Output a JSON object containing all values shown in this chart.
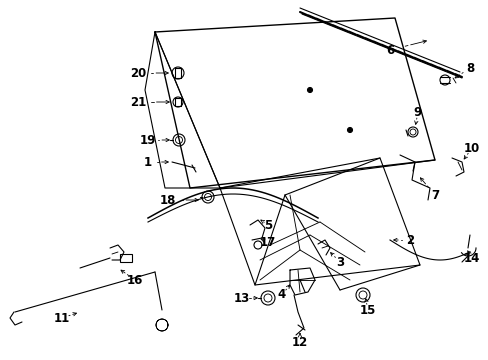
{
  "background_color": "#ffffff",
  "line_color": "#000000",
  "text_color": "#000000",
  "fig_width": 4.89,
  "fig_height": 3.6,
  "dpi": 100,
  "lw": 0.8
}
